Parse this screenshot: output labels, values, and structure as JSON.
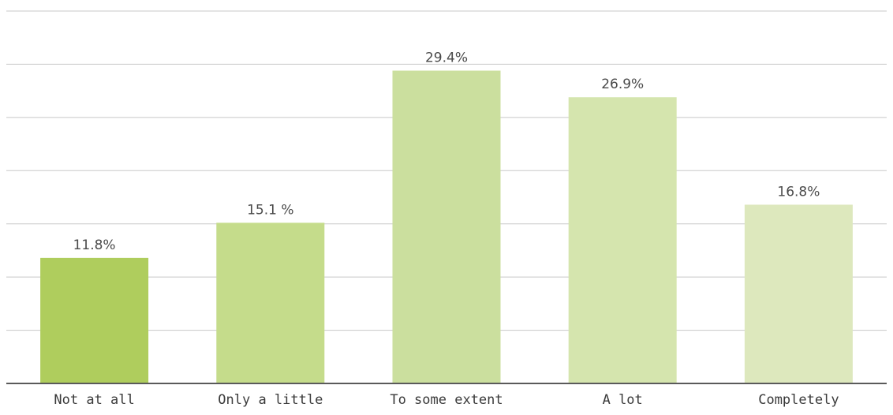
{
  "chart_data": {
    "type": "bar",
    "title": "",
    "xlabel": "",
    "ylabel": "",
    "ylim": [
      0,
      35
    ],
    "grid": true,
    "gridline_step": 5,
    "categories": [
      "Not at all",
      "Only a little",
      "To some extent",
      "A lot",
      "Completely"
    ],
    "values": [
      11.8,
      15.1,
      29.4,
      26.9,
      16.8
    ],
    "data_labels": [
      "11.8%",
      "15.1 %",
      "29.4%",
      "26.9%",
      "16.8%"
    ],
    "colors": [
      "#afcd5d",
      "#c5dc8b",
      "#cbdf9e",
      "#d5e5ae",
      "#dde8bd"
    ]
  }
}
